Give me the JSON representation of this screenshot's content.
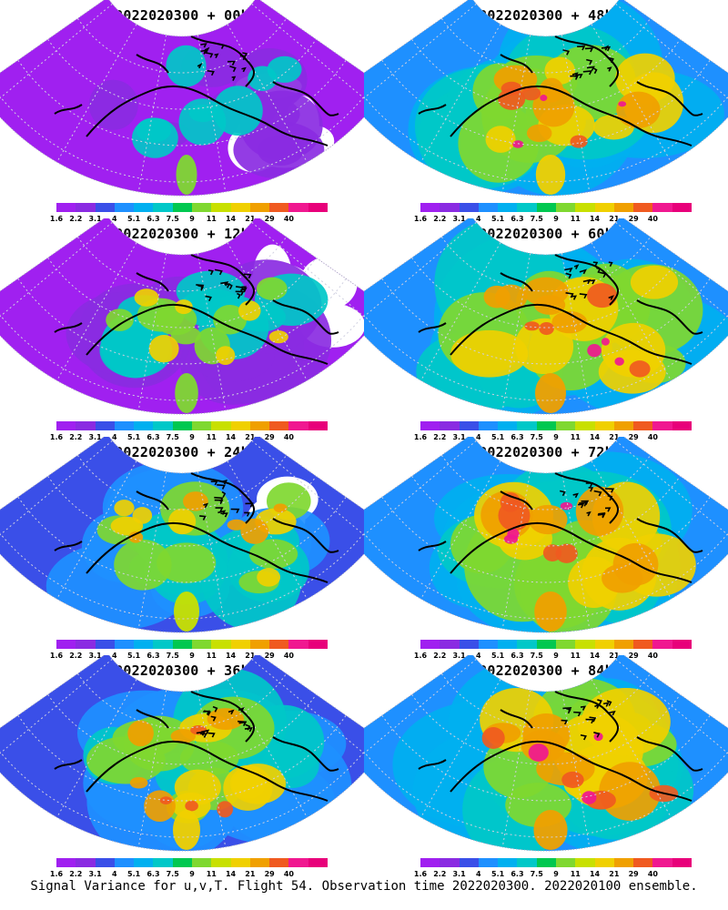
{
  "caption": "Signal Variance for u,v,T. Flight 54. Observation time 2022020300. 2022020100 ensemble.",
  "colorbar": {
    "levels": [
      "1.6",
      "2.2",
      "3.1",
      "4",
      "5.1",
      "6.3",
      "7.5",
      "9",
      "11",
      "14",
      "21",
      "29",
      "40"
    ],
    "colors": [
      "#a020f0",
      "#8a2be2",
      "#3a4fe8",
      "#1e90ff",
      "#00b0f0",
      "#00c8c8",
      "#00c850",
      "#7fd830",
      "#c8e000",
      "#f0d000",
      "#f0a000",
      "#f05a20",
      "#f01890",
      "#e8007a"
    ]
  },
  "panels": [
    {
      "title": "2022020300 + 00h",
      "lead_hours": 0,
      "intensity": 0.15
    },
    {
      "title": "2022020300 + 48h",
      "lead_hours": 48,
      "intensity": 0.62
    },
    {
      "title": "2022020300 + 12h",
      "lead_hours": 12,
      "intensity": 0.28
    },
    {
      "title": "2022020300 + 60h",
      "lead_hours": 60,
      "intensity": 0.7
    },
    {
      "title": "2022020300 + 24h",
      "lead_hours": 24,
      "intensity": 0.4
    },
    {
      "title": "2022020300 + 72h",
      "lead_hours": 72,
      "intensity": 0.78
    },
    {
      "title": "2022020300 + 36h",
      "lead_hours": 36,
      "intensity": 0.5
    },
    {
      "title": "2022020300 + 84h",
      "lead_hours": 84,
      "intensity": 0.86
    }
  ]
}
